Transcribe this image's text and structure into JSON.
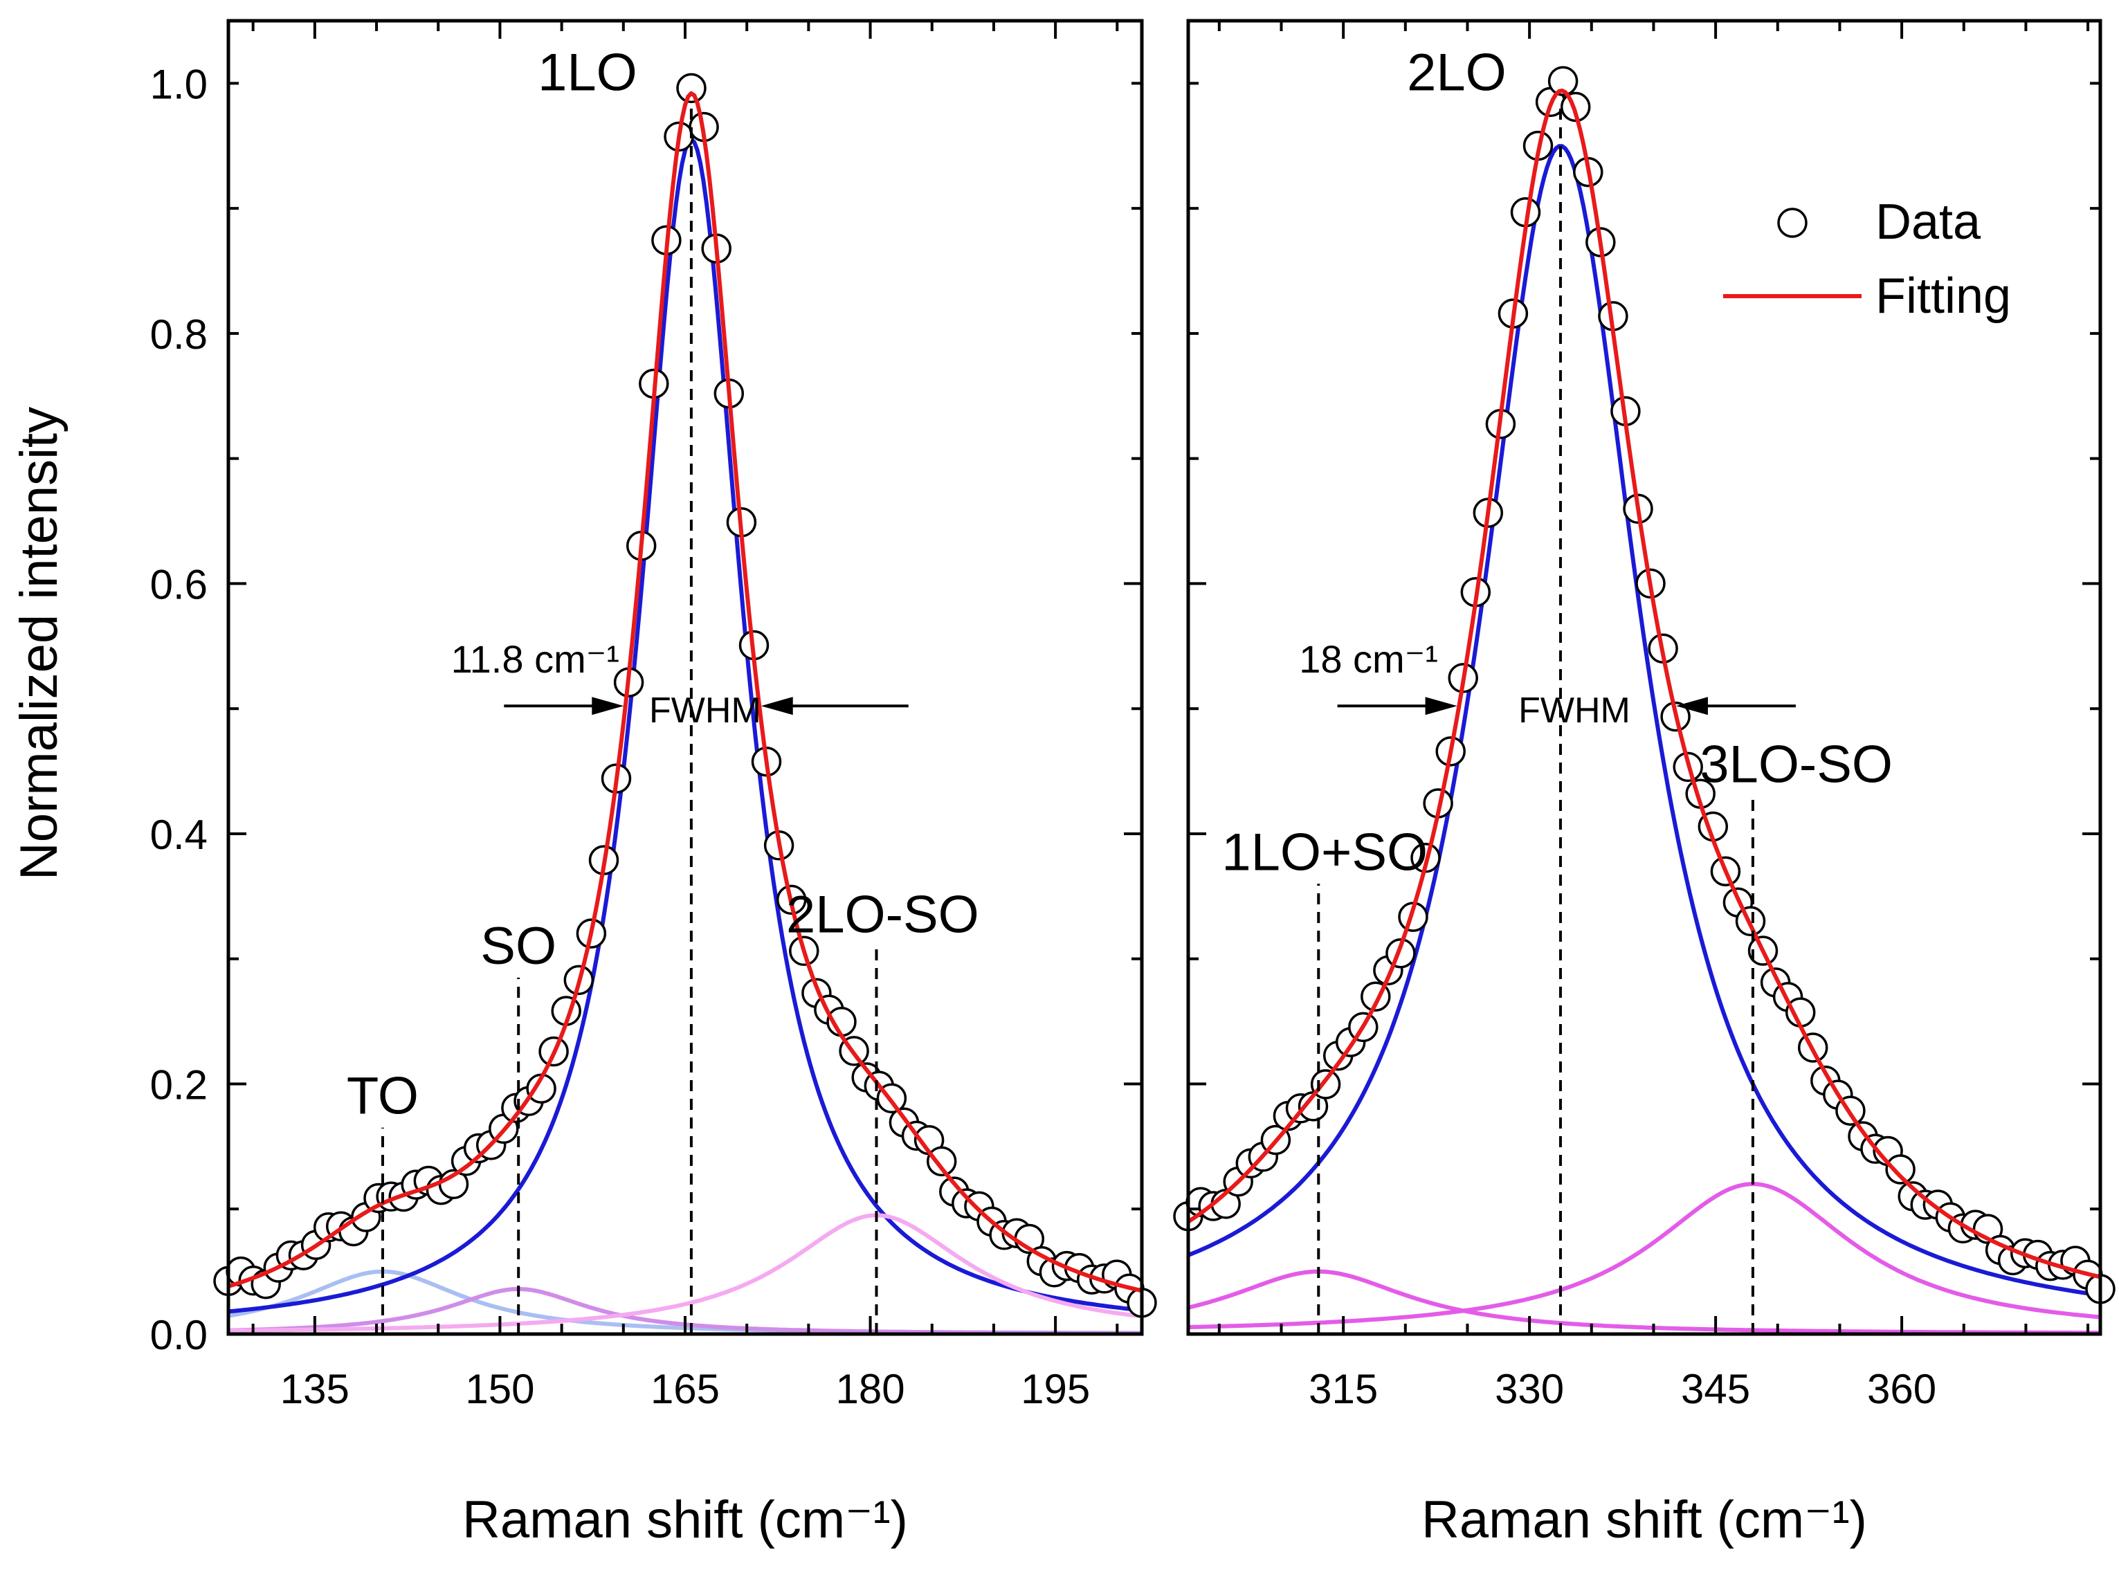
{
  "chart_data": [
    {
      "type": "line",
      "panel": "left",
      "xlabel": "Raman shift (cm⁻¹)",
      "ylabel": "Normalized intensity",
      "xlim": [
        128,
        202
      ],
      "ylim": [
        0.0,
        1.05
      ],
      "xticks": [
        135,
        150,
        165,
        180,
        195
      ],
      "xtick_labels": [
        "135",
        "150",
        "165",
        "180",
        "195"
      ],
      "yticks": [
        0.0,
        0.2,
        0.4,
        0.6,
        0.8,
        1.0
      ],
      "ytick_labels": [
        "0.0",
        "0.2",
        "0.4",
        "0.6",
        "0.8",
        "1.0"
      ],
      "peaks": [
        {
          "name": "TO",
          "center": 140.5,
          "amplitude": 0.05,
          "width": 8.0,
          "color": "#a9bff2"
        },
        {
          "name": "SO",
          "center": 151.5,
          "amplitude": 0.036,
          "width": 7.0,
          "color": "#d08ce8"
        },
        {
          "name": "1LO",
          "center": 165.5,
          "amplitude": 0.955,
          "width": 5.2,
          "color": "#1a1ad6"
        },
        {
          "name": "2LO-SO",
          "center": 180.5,
          "amplitude": 0.095,
          "width": 9.0,
          "color": "#f5aaf0"
        }
      ],
      "data_offset": 0.0,
      "annotations": {
        "peak_label": "1LO",
        "to_label": "TO",
        "so_label": "SO",
        "side_label": "2LO-SO",
        "fwhm_value": "11.8 cm⁻¹",
        "fwhm_text": "FWHM",
        "fwhm_y": 0.5
      }
    },
    {
      "type": "line",
      "panel": "right",
      "xlabel": "Raman shift (cm⁻¹)",
      "ylabel": "",
      "xlim": [
        302.5,
        376
      ],
      "ylim": [
        0.0,
        1.05
      ],
      "xticks": [
        315,
        330,
        345,
        360
      ],
      "xtick_labels": [
        "315",
        "330",
        "345",
        "360"
      ],
      "yticks": [
        0.0,
        0.2,
        0.4,
        0.6,
        0.8,
        1.0
      ],
      "ytick_labels": [],
      "peaks": [
        {
          "name": "1LO+SO",
          "center": 313.0,
          "amplitude": 0.05,
          "width": 9.0,
          "color": "#e35ce8"
        },
        {
          "name": "2LO",
          "center": 332.5,
          "amplitude": 0.95,
          "width": 8.0,
          "color": "#1a1ad6"
        },
        {
          "name": "3LO-SO",
          "center": 348.0,
          "amplitude": 0.12,
          "width": 10.0,
          "color": "#e35ce8"
        }
      ],
      "data_offset": 0.0,
      "annotations": {
        "peak_label": "2LO",
        "left_label": "1LO+SO",
        "side_label": "3LO-SO",
        "fwhm_value": "18 cm⁻¹",
        "fwhm_text": "FWHM",
        "fwhm_y": 0.5
      },
      "legend": [
        {
          "label": "Data",
          "marker": "circle"
        },
        {
          "label": "Fitting",
          "marker": "line",
          "color": "#e81a1a"
        }
      ]
    }
  ],
  "colors": {
    "fit": "#e81a1a",
    "main_component": "#1a1ad6"
  }
}
